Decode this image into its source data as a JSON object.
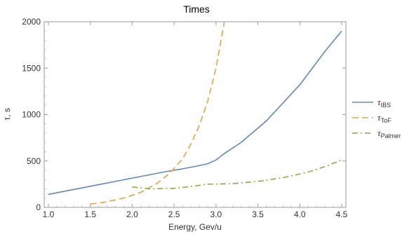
{
  "chart_data": {
    "type": "line",
    "title": "Times",
    "xlabel": "Energy, Gev/u",
    "ylabel": "τ, s",
    "xlim": [
      0.95,
      4.55
    ],
    "ylim": [
      0,
      2000
    ],
    "x_ticks": [
      "1.0",
      "1.5",
      "2.0",
      "2.5",
      "3.0",
      "3.5",
      "4.0",
      "4.5"
    ],
    "y_ticks": [
      "0",
      "500",
      "1000",
      "1500",
      "2000"
    ],
    "grid": false,
    "legend_placement": "right",
    "series": [
      {
        "name": "τ_IBS",
        "legend_main": "τ",
        "legend_sub": "IBS",
        "color": "#5f88b8",
        "dash": "solid",
        "points": [
          [
            1.0,
            140
          ],
          [
            1.2,
            175
          ],
          [
            1.4,
            210
          ],
          [
            1.6,
            245
          ],
          [
            1.8,
            280
          ],
          [
            2.0,
            315
          ],
          [
            2.2,
            350
          ],
          [
            2.4,
            385
          ],
          [
            2.6,
            415
          ],
          [
            2.8,
            450
          ],
          [
            2.9,
            470
          ],
          [
            3.0,
            510
          ],
          [
            3.1,
            580
          ],
          [
            3.3,
            700
          ],
          [
            3.6,
            930
          ],
          [
            4.0,
            1320
          ],
          [
            4.3,
            1680
          ],
          [
            4.5,
            1900
          ]
        ]
      },
      {
        "name": "τ_ToF",
        "legend_main": "τ",
        "legend_sub": "ToF",
        "color": "#e8a040",
        "dash": "long",
        "points": [
          [
            1.5,
            35
          ],
          [
            1.7,
            60
          ],
          [
            1.9,
            100
          ],
          [
            2.1,
            160
          ],
          [
            2.3,
            260
          ],
          [
            2.45,
            370
          ],
          [
            2.6,
            520
          ],
          [
            2.7,
            680
          ],
          [
            2.8,
            880
          ],
          [
            2.9,
            1140
          ],
          [
            3.0,
            1500
          ],
          [
            3.05,
            1750
          ],
          [
            3.1,
            2000
          ]
        ]
      },
      {
        "name": "τ_Palmer",
        "legend_main": "τ",
        "legend_sub": "Palmer",
        "color": "#8aaa3c",
        "dash": "dashdot",
        "points": [
          [
            2.0,
            220
          ],
          [
            2.2,
            200
          ],
          [
            2.5,
            205
          ],
          [
            2.7,
            225
          ],
          [
            2.9,
            250
          ],
          [
            3.2,
            255
          ],
          [
            3.5,
            280
          ],
          [
            3.8,
            320
          ],
          [
            4.1,
            380
          ],
          [
            4.3,
            440
          ],
          [
            4.5,
            510
          ]
        ]
      }
    ]
  }
}
